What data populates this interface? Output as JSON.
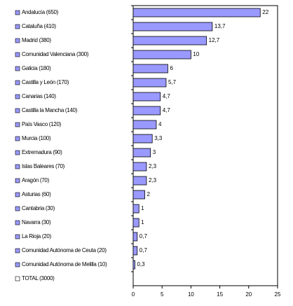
{
  "chart_data": {
    "type": "bar",
    "orientation": "horizontal",
    "categories": [
      "Andalucía (650)",
      "Cataluña (410)",
      "Madrid (380)",
      "Comunidad Valenciana (300)",
      "Galicia (180)",
      "Castilla y León (170)",
      "Canarias (140)",
      "Castilla la Mancha (140)",
      "País Vasco (120)",
      "Murcia (100)",
      "Extremadura (90)",
      "Islas Baleares (70)",
      "Aragón (70)",
      "Asturias (60)",
      "Cantabria (30)",
      "Navarra (30)",
      "La Rioja (20)",
      "Comunidad Autónoma de Ceuta (20)",
      "Comunidad Autónoma de Melilla (10)",
      "TOTAL (3000)"
    ],
    "values": [
      22,
      13.7,
      12.7,
      10,
      6,
      5.7,
      4.7,
      4.7,
      4,
      3.3,
      3,
      2.3,
      2.3,
      2,
      1,
      1,
      0.7,
      0.7,
      0.3,
      null
    ],
    "value_labels": [
      "22",
      "13,7",
      "12,7",
      "10",
      "6",
      "5,7",
      "4,7",
      "4,7",
      "4",
      "3,3",
      "3",
      "2,3",
      "2,3",
      "2",
      "1",
      "1",
      "0,7",
      "0,7",
      "0,3",
      null
    ],
    "color": "#9999ff",
    "xlim": [
      0,
      25
    ],
    "xticks": [
      0,
      5,
      10,
      15,
      20,
      25
    ]
  }
}
